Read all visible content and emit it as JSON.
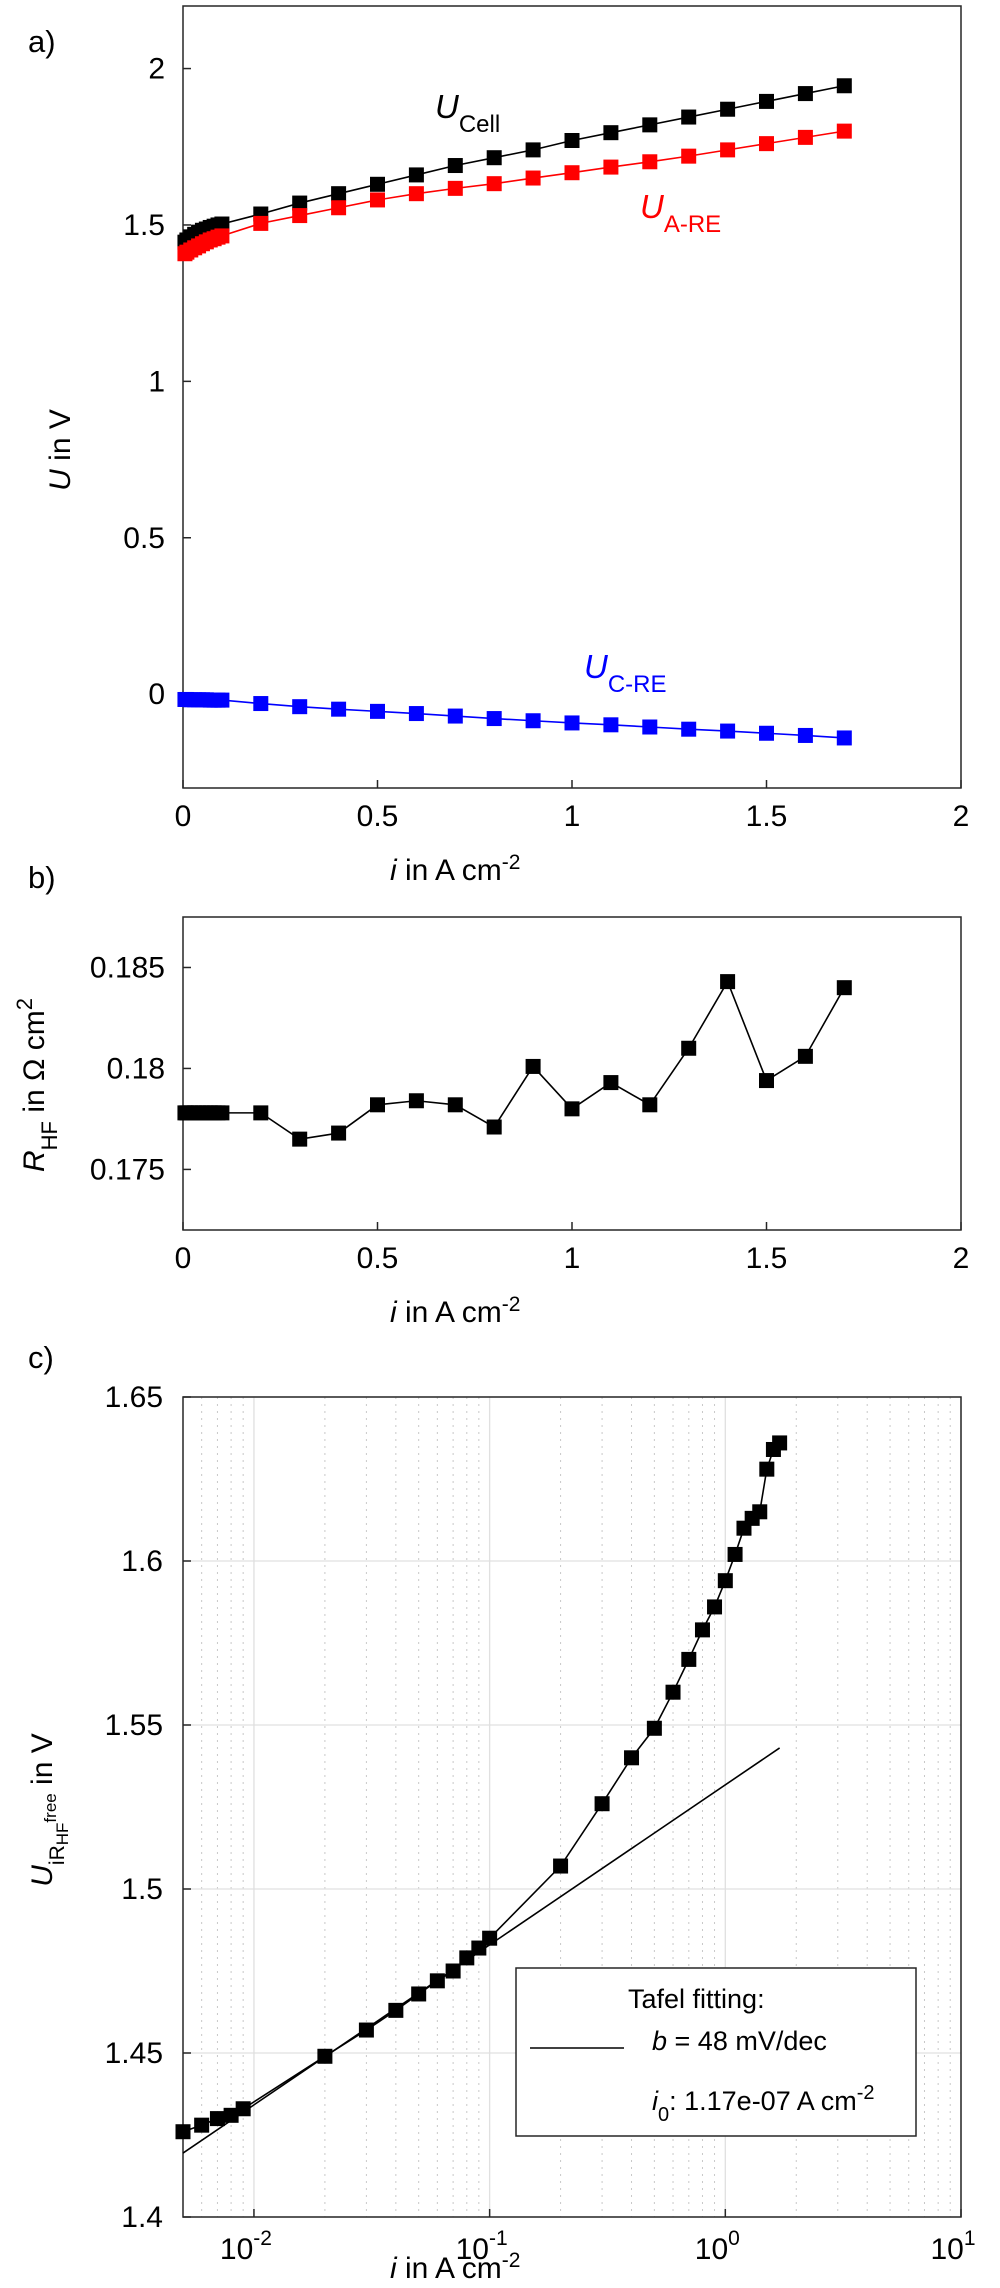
{
  "chart_data": [
    {
      "panel": "a)",
      "type": "line",
      "xlabel": {
        "var": "i",
        "unit": "in A cm",
        "sup": "-2"
      },
      "ylabel": {
        "var": "U",
        "unit": " in V"
      },
      "xlim": [
        0,
        2
      ],
      "ylim": [
        -0.3,
        2.2
      ],
      "xticks": [
        "0",
        "0.5",
        "1",
        "1.5",
        "2"
      ],
      "yticks": [
        "0",
        "0.5",
        "1",
        "1.5",
        "2"
      ],
      "grid": false,
      "x": [
        0.005,
        0.01,
        0.02,
        0.03,
        0.04,
        0.05,
        0.06,
        0.07,
        0.08,
        0.09,
        0.1,
        0.2,
        0.3,
        0.4,
        0.5,
        0.6,
        0.7,
        0.8,
        0.9,
        1.0,
        1.1,
        1.2,
        1.3,
        1.4,
        1.5,
        1.6,
        1.7
      ],
      "series": [
        {
          "var": "U",
          "sub": "Cell",
          "color": "#000000",
          "values": [
            1.445,
            1.452,
            1.462,
            1.47,
            1.477,
            1.483,
            1.487,
            1.492,
            1.496,
            1.5,
            1.503,
            1.535,
            1.57,
            1.6,
            1.63,
            1.66,
            1.69,
            1.715,
            1.74,
            1.77,
            1.795,
            1.82,
            1.845,
            1.87,
            1.895,
            1.92,
            1.945
          ]
        },
        {
          "var": "U",
          "sub": "A-RE",
          "color": "#ff0000",
          "values": [
            1.408,
            1.413,
            1.42,
            1.427,
            1.433,
            1.44,
            1.446,
            1.452,
            1.456,
            1.461,
            1.465,
            1.505,
            1.53,
            1.555,
            1.58,
            1.6,
            1.617,
            1.632,
            1.65,
            1.667,
            1.685,
            1.702,
            1.72,
            1.74,
            1.76,
            1.78,
            1.8
          ]
        },
        {
          "var": "U",
          "sub": "C-RE",
          "color": "#0000ff",
          "values": [
            -0.017,
            -0.017,
            -0.018,
            -0.018,
            -0.018,
            -0.018,
            -0.018,
            -0.019,
            -0.019,
            -0.019,
            -0.019,
            -0.03,
            -0.04,
            -0.048,
            -0.055,
            -0.062,
            -0.07,
            -0.078,
            -0.085,
            -0.092,
            -0.098,
            -0.105,
            -0.112,
            -0.118,
            -0.125,
            -0.132,
            -0.14
          ]
        }
      ]
    },
    {
      "panel": "b)",
      "type": "line",
      "xlabel": {
        "var": "i",
        "unit": "in A cm",
        "sup": "-2"
      },
      "ylabel": {
        "var": "R",
        "sub": "HF",
        "unit": " in Ω cm",
        "sup": "2"
      },
      "xlim": [
        0,
        2
      ],
      "ylim": [
        0.172,
        0.1875
      ],
      "xticks": [
        "0",
        "0.5",
        "1",
        "1.5",
        "2"
      ],
      "yticks": [
        "0.175",
        "0.18",
        "0.185"
      ],
      "grid": false,
      "color": "#000000",
      "x": [
        0.005,
        0.01,
        0.02,
        0.03,
        0.04,
        0.05,
        0.06,
        0.07,
        0.08,
        0.09,
        0.1,
        0.2,
        0.3,
        0.4,
        0.5,
        0.6,
        0.7,
        0.8,
        0.9,
        1.0,
        1.1,
        1.2,
        1.3,
        1.4,
        1.5,
        1.6,
        1.7
      ],
      "values": [
        0.1778,
        0.1778,
        0.1778,
        0.1778,
        0.1778,
        0.1778,
        0.1778,
        0.1778,
        0.1778,
        0.1778,
        0.1778,
        0.1778,
        0.1765,
        0.1768,
        0.1782,
        0.1784,
        0.1782,
        0.1771,
        0.1801,
        0.178,
        0.1793,
        0.1782,
        0.181,
        0.1843,
        0.1794,
        0.1806,
        0.184
      ]
    },
    {
      "panel": "c)",
      "type": "line",
      "xscale": "log",
      "xlabel": {
        "var": "i",
        "unit": "in A cm",
        "sup": "-2"
      },
      "ylabel": {
        "var": "U",
        "sub": "iR",
        "subsub": "HF",
        "subsup": "free",
        "unit": " in V"
      },
      "xlim": [
        0.005,
        10
      ],
      "ylim": [
        1.4,
        1.65
      ],
      "xticks": [
        {
          "base": "10",
          "exp": "-2"
        },
        {
          "base": "10",
          "exp": "-1"
        },
        {
          "base": "10",
          "exp": "0"
        },
        {
          "base": "10",
          "exp": "1"
        }
      ],
      "yticks": [
        "1.4",
        "1.45",
        "1.5",
        "1.55",
        "1.6",
        "1.65"
      ],
      "grid": true,
      "color": "#000000",
      "x": [
        0.005,
        0.006,
        0.007,
        0.008,
        0.009,
        0.02,
        0.03,
        0.04,
        0.05,
        0.06,
        0.07,
        0.08,
        0.09,
        0.1,
        0.2,
        0.3,
        0.4,
        0.5,
        0.6,
        0.7,
        0.8,
        0.9,
        1.0,
        1.1,
        1.2,
        1.3,
        1.4,
        1.5,
        1.6,
        1.7
      ],
      "values": [
        1.426,
        1.428,
        1.43,
        1.431,
        1.433,
        1.449,
        1.457,
        1.463,
        1.468,
        1.472,
        1.475,
        1.479,
        1.482,
        1.485,
        1.507,
        1.526,
        1.54,
        1.549,
        1.56,
        1.57,
        1.579,
        1.586,
        1.594,
        1.602,
        1.61,
        1.613,
        1.615,
        1.628,
        1.634,
        1.636
      ],
      "fit": {
        "x": [
          0.005,
          1.7
        ],
        "values": [
          1.4195,
          1.543
        ]
      },
      "legend": {
        "title": "Tafel fitting:",
        "line1": {
          "var": "b",
          "text": " = 48 mV/dec"
        },
        "line2": {
          "var": "i",
          "sub": "0",
          "text": ": 1.17e-07 A cm",
          "sup": "-2"
        }
      }
    }
  ]
}
